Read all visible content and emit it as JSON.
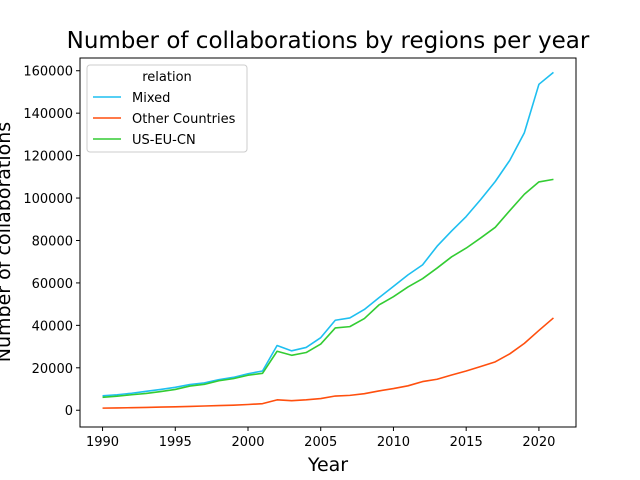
{
  "chart_data": {
    "type": "line",
    "title": "Number of collaborations by regions per year",
    "xlabel": "Year",
    "ylabel": "Number of collaborations",
    "xlim": [
      1988.45,
      2022.55
    ],
    "ylim": [
      -7900,
      166000
    ],
    "xticks": [
      1990,
      1995,
      2000,
      2005,
      2010,
      2015,
      2020
    ],
    "yticks": [
      0,
      20000,
      40000,
      60000,
      80000,
      100000,
      120000,
      140000,
      160000
    ],
    "grid": false,
    "legend": {
      "title": "relation",
      "placement": "top-left"
    },
    "x": [
      1990,
      1991,
      1992,
      1993,
      1994,
      1995,
      1996,
      1997,
      1998,
      1999,
      2000,
      2001,
      2002,
      2003,
      2004,
      2005,
      2006,
      2007,
      2008,
      2009,
      2010,
      2011,
      2012,
      2013,
      2014,
      2015,
      2016,
      2017,
      2018,
      2019,
      2020,
      2021
    ],
    "series": [
      {
        "name": "Mixed",
        "color": "#1ebff0",
        "values": [
          6800,
          7300,
          8000,
          8900,
          9800,
          10800,
          12100,
          12900,
          14400,
          15500,
          17200,
          18500,
          30500,
          28000,
          29600,
          34200,
          42400,
          43500,
          47500,
          53000,
          58400,
          63800,
          68500,
          77300,
          84500,
          91300,
          99300,
          107800,
          117800,
          130800,
          153600,
          159200
        ]
      },
      {
        "name": "Other Countries",
        "color": "#ff4f0e",
        "values": [
          1000,
          1100,
          1200,
          1300,
          1500,
          1600,
          1800,
          2000,
          2200,
          2400,
          2700,
          3100,
          4900,
          4500,
          4900,
          5500,
          6700,
          7000,
          7800,
          9100,
          10200,
          11500,
          13500,
          14600,
          16600,
          18500,
          20600,
          22800,
          26600,
          31500,
          37600,
          43500
        ]
      },
      {
        "name": "US-EU-CN",
        "color": "#33cc33",
        "values": [
          6100,
          6600,
          7300,
          7900,
          8800,
          9800,
          11400,
          12200,
          13900,
          14900,
          16500,
          17400,
          27800,
          25900,
          27200,
          31200,
          38800,
          39400,
          43200,
          49600,
          53500,
          58100,
          62000,
          67000,
          72300,
          76400,
          81200,
          86200,
          94100,
          101800,
          107600,
          108800
        ]
      }
    ]
  }
}
